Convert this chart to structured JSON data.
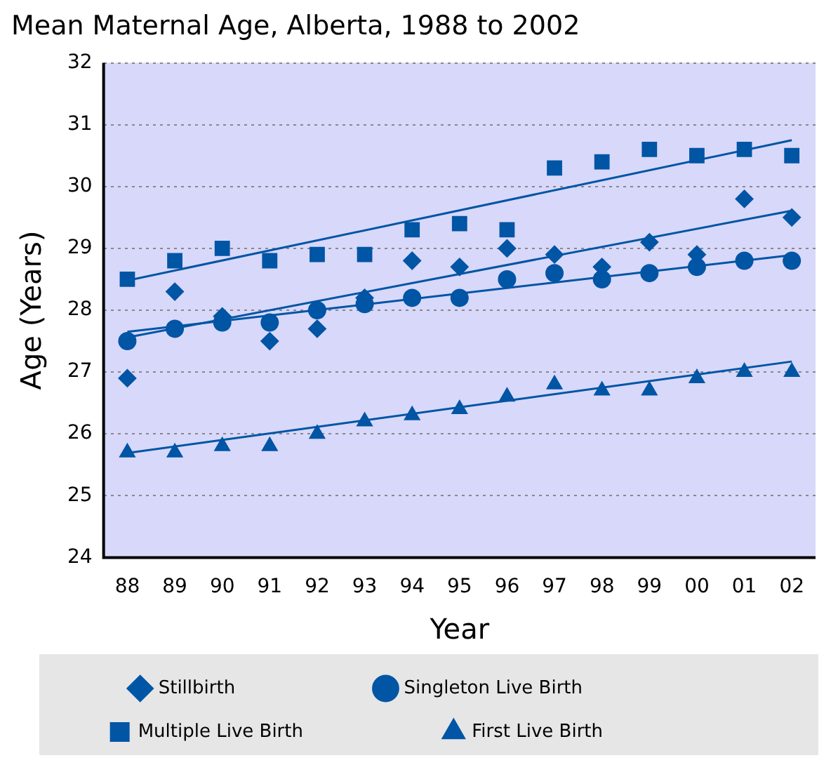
{
  "chart_data": {
    "type": "scatter",
    "title": "Mean Maternal Age, Alberta, 1988 to 2002",
    "xlabel": "Year",
    "ylabel": "Age (Years)",
    "categories": [
      "88",
      "89",
      "90",
      "91",
      "92",
      "93",
      "94",
      "95",
      "96",
      "97",
      "98",
      "99",
      "00",
      "01",
      "02"
    ],
    "ylim": [
      24,
      32
    ],
    "yticks": [
      24,
      25,
      26,
      27,
      28,
      29,
      30,
      31,
      32
    ],
    "grid": "y",
    "legend": "bottom",
    "series": [
      {
        "name": "Stillbirth",
        "color": "#0055a5",
        "marker": "diamond",
        "values": [
          26.9,
          28.3,
          27.9,
          27.5,
          27.7,
          28.2,
          28.8,
          28.7,
          29.0,
          28.9,
          28.7,
          29.1,
          28.9,
          29.8,
          29.5
        ]
      },
      {
        "name": "Singleton Live Birth",
        "color": "#0055a5",
        "marker": "circle",
        "values": [
          27.5,
          27.7,
          27.8,
          27.8,
          28.0,
          28.1,
          28.2,
          28.2,
          28.5,
          28.6,
          28.5,
          28.6,
          28.7,
          28.8,
          28.8
        ]
      },
      {
        "name": "Multiple Live Birth",
        "color": "#0055a5",
        "marker": "square",
        "values": [
          28.5,
          28.8,
          29.0,
          28.8,
          28.9,
          28.9,
          29.3,
          29.4,
          29.3,
          30.3,
          30.4,
          30.6,
          30.5,
          30.6,
          30.5
        ]
      },
      {
        "name": "First Live Birth",
        "color": "#0055a5",
        "marker": "triangle",
        "values": [
          25.7,
          25.7,
          25.8,
          25.8,
          26.0,
          26.2,
          26.3,
          26.4,
          26.6,
          26.8,
          26.7,
          26.7,
          26.9,
          27.0,
          27.0
        ]
      },
      {
        "type": "line",
        "color": "#0055a5",
        "x": [
          "88",
          "02"
        ],
        "values": [
          27.56,
          29.61
        ]
      },
      {
        "type": "line",
        "color": "#0055a5",
        "x": [
          "88",
          "02"
        ],
        "values": [
          27.65,
          28.89
        ]
      },
      {
        "type": "line",
        "color": "#0055a5",
        "x": [
          "88",
          "02"
        ],
        "values": [
          28.48,
          30.75
        ]
      },
      {
        "type": "line",
        "color": "#0055a5",
        "x": [
          "88",
          "02"
        ],
        "values": [
          25.69,
          27.17
        ]
      }
    ]
  }
}
